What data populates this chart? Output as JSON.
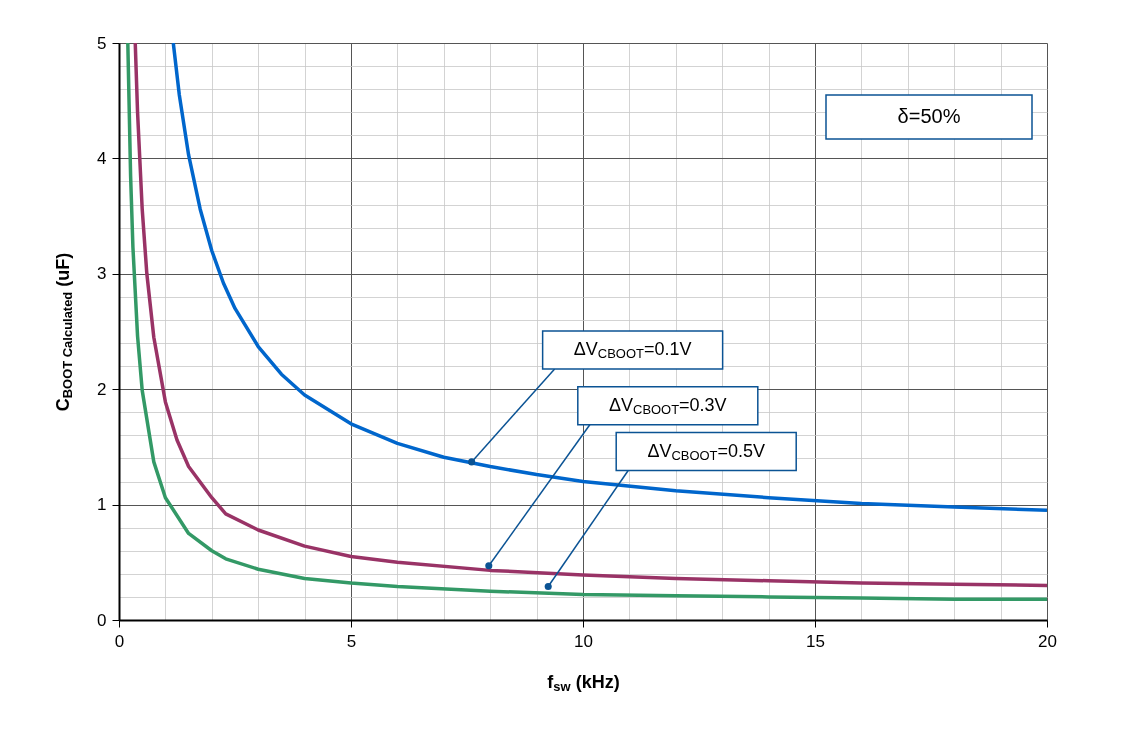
{
  "chart_data": {
    "type": "line",
    "xlabel": "f$_{sw}$ (kHz)",
    "ylabel": "C$_{BOOT Calculated}$ (uF)",
    "xlim": [
      0,
      20
    ],
    "ylim": [
      0,
      5
    ],
    "xticks": [
      0,
      {
        "value": 1,
        "label": null
      },
      {
        "value": 2,
        "label": null
      },
      {
        "value": 3,
        "label": null
      },
      {
        "value": 4,
        "label": null
      },
      5,
      {
        "value": 6,
        "label": null
      },
      {
        "value": 7,
        "label": null
      },
      {
        "value": 8,
        "label": null
      },
      {
        "value": 9,
        "label": null
      },
      10,
      {
        "value": 11,
        "label": null
      },
      {
        "value": 12,
        "label": null
      },
      {
        "value": 13,
        "label": null
      },
      {
        "value": 14,
        "label": null
      },
      15,
      {
        "value": 16,
        "label": null
      },
      {
        "value": 17,
        "label": null
      },
      {
        "value": 18,
        "label": null
      },
      {
        "value": 19,
        "label": null
      },
      20
    ],
    "yticks": [
      0,
      {
        "value": 0.2,
        "label": null
      },
      {
        "value": 0.4,
        "label": null
      },
      {
        "value": 0.6,
        "label": null
      },
      {
        "value": 0.8,
        "label": null
      },
      1,
      {
        "value": 1.2,
        "label": null
      },
      {
        "value": 1.4,
        "label": null
      },
      {
        "value": 1.6,
        "label": null
      },
      {
        "value": 1.8,
        "label": null
      },
      2,
      {
        "value": 2.2,
        "label": null
      },
      {
        "value": 2.4,
        "label": null
      },
      {
        "value": 2.6,
        "label": null
      },
      {
        "value": 2.8,
        "label": null
      },
      3,
      {
        "value": 3.2,
        "label": null
      },
      {
        "value": 3.4,
        "label": null
      },
      {
        "value": 3.6,
        "label": null
      },
      {
        "value": 3.8,
        "label": null
      },
      4,
      {
        "value": 4.2,
        "label": null
      },
      {
        "value": 4.4,
        "label": null
      },
      {
        "value": 4.6,
        "label": null
      },
      {
        "value": 4.8,
        "label": null
      },
      5
    ],
    "grid": true,
    "series": [
      {
        "color": "#0066cc",
        "x": [
          1.17,
          1.3,
          1.5,
          1.75,
          2,
          2.25,
          2.5,
          3,
          3.5,
          4,
          5,
          6,
          7,
          8,
          9,
          10,
          12,
          14,
          16,
          18,
          20
        ],
        "values": [
          5.0,
          4.55,
          4.03,
          3.56,
          3.2,
          2.92,
          2.7,
          2.37,
          2.13,
          1.95,
          1.7,
          1.53,
          1.41,
          1.33,
          1.26,
          1.2,
          1.12,
          1.06,
          1.01,
          0.98,
          0.95
        ]
      },
      {
        "color": "#993366",
        "x": [
          0.35,
          0.4,
          0.5,
          0.6,
          0.75,
          1,
          1.25,
          1.5,
          2,
          2.3,
          3,
          4,
          5,
          6,
          8,
          10,
          12,
          14,
          16,
          18,
          20
        ],
        "values": [
          5.0,
          4.4,
          3.56,
          3.0,
          2.45,
          1.89,
          1.56,
          1.33,
          1.06,
          0.92,
          0.78,
          0.64,
          0.55,
          0.5,
          0.43,
          0.39,
          0.36,
          0.34,
          0.32,
          0.31,
          0.3
        ]
      },
      {
        "color": "#339966",
        "x": [
          0.19,
          0.25,
          0.3,
          0.4,
          0.5,
          0.75,
          1,
          1.5,
          2,
          2.3,
          3,
          4,
          5,
          6,
          8,
          10,
          12,
          14,
          16,
          18,
          20
        ],
        "values": [
          5.0,
          3.85,
          3.23,
          2.46,
          1.99,
          1.37,
          1.06,
          0.75,
          0.6,
          0.53,
          0.44,
          0.36,
          0.32,
          0.29,
          0.25,
          0.22,
          0.21,
          0.2,
          0.19,
          0.18,
          0.18
        ]
      }
    ],
    "annotations": [
      {
        "text": "ΔV$_{CBOOT}$=0.1V",
        "x": 7.6,
        "y": 1.37
      },
      {
        "text": "ΔV$_{CBOOT}$=0.3V",
        "x": 7.97,
        "y": 0.47
      },
      {
        "text": "ΔV$_{CBOOT}$=0.5V",
        "x": 9.25,
        "y": 0.29
      },
      "δ=50%"
    ]
  }
}
